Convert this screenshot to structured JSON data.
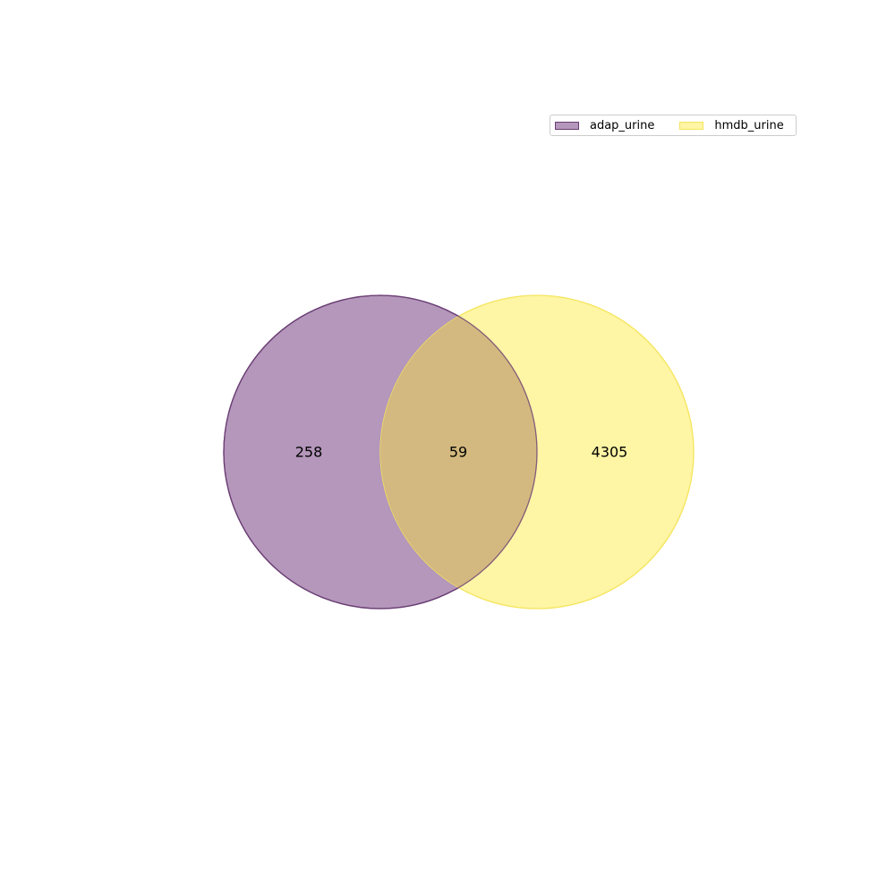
{
  "venn": {
    "sets": [
      {
        "name": "adap_urine",
        "only_count": "258",
        "fill": "#b497bb",
        "edge": "#6a3d74"
      },
      {
        "name": "hmdb_urine",
        "only_count": "4305",
        "fill": "#fef5a5",
        "edge": "#f5e55c"
      }
    ],
    "intersection_count": "59",
    "intersection_fill": "#d3b97f",
    "legend_placement": "top-right"
  }
}
